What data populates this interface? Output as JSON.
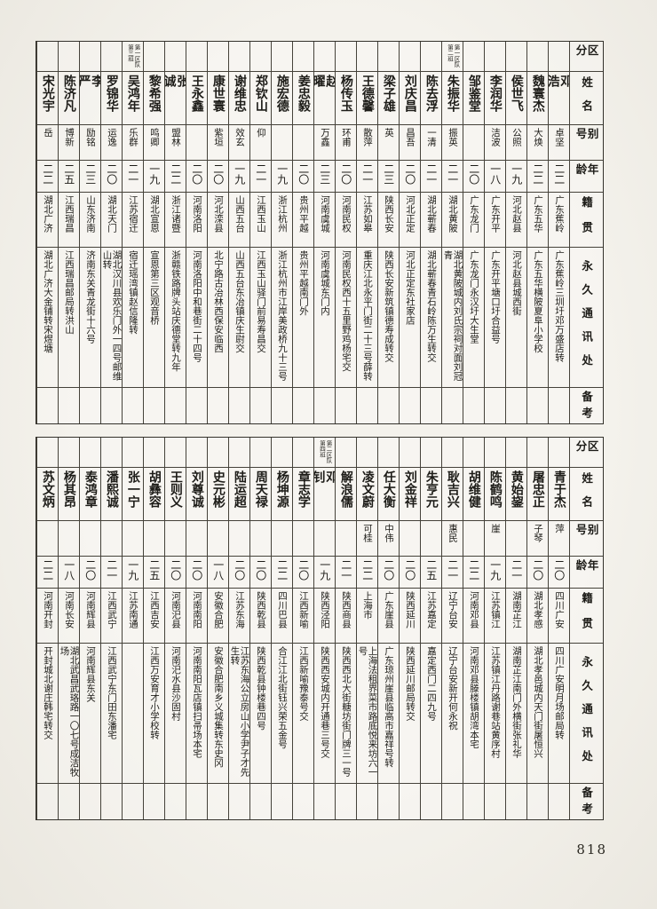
{
  "page": {
    "number": "818"
  },
  "headers": {
    "qufen": "区分",
    "name": "姓名",
    "alias": "别号",
    "age": "年龄",
    "native": "籍贯",
    "address": "永久通讯处",
    "note": "备考"
  },
  "tables": [
    {
      "people": [
        {
          "name": "邓浩",
          "alias": "卓坚",
          "age": "二二",
          "native": "广东蕉岭",
          "address": "广东蕉岭三圳圩邓万盛店转"
        },
        {
          "name": "魏寰杰",
          "alias": "大焕",
          "age": "二二",
          "native": "广东五华",
          "address": "广东五华横陂夏阜小学校"
        },
        {
          "name": "侯世飞",
          "alias": "公照",
          "age": "一九",
          "native": "河北赵县",
          "address": "河北赵县城西街"
        },
        {
          "name": "李润华",
          "alias": "洁波",
          "age": "一八",
          "native": "广东开平",
          "address": "广东开平塘口圩合益号"
        },
        {
          "name": "邹鉴堂",
          "alias": "",
          "age": "二〇",
          "native": "广东龙门",
          "address": "广东龙门永汉圩大生堂"
        },
        {
          "name": "朱振华",
          "alias": "振英",
          "age": "二一",
          "native": "湖北黄陂",
          "address": "湖北黄陂城内刘氏宗祠对面刘冠青",
          "group": "第一区队第二班"
        },
        {
          "name": "陈去浮",
          "alias": "一清",
          "age": "二一",
          "native": "湖北蕲春",
          "address": "湖北蕲春青石岭陈万生转交"
        },
        {
          "name": "刘庆昌",
          "alias": "昌吾",
          "age": "二〇",
          "native": "河北正定",
          "address": "河北正定东社家店"
        },
        {
          "name": "梁子雄",
          "alias": "英",
          "age": "二三",
          "native": "陕西长安",
          "address": "陕西长安新筑镇德寿成转交"
        },
        {
          "name": "王德馨",
          "alias": "散萍",
          "age": "二一",
          "native": "江苏如皋",
          "address": "重庆江北永平门街二十三号薛转"
        },
        {
          "name": "杨传玉",
          "alias": "环甫",
          "age": "二〇",
          "native": "河南民权",
          "address": "河南民权西十五里野鸡杨宅交"
        },
        {
          "name": "赵曜",
          "alias": "万鑫",
          "age": "二三",
          "native": "河南虞城",
          "address": "河南虞城东门内"
        },
        {
          "name": "姜忠毅",
          "alias": "",
          "age": "二〇",
          "native": "贵州平越",
          "address": "贵州平越南门外"
        },
        {
          "name": "施宏德",
          "alias": "",
          "age": "一九",
          "native": "浙江杭州",
          "address": "浙江杭州市江岸美政桥九十三号"
        },
        {
          "name": "郑钦山",
          "alias": "仰",
          "age": "二一",
          "native": "江西玉山",
          "address": "江西玉山驿门前易寿昌交"
        },
        {
          "name": "谢维忠",
          "alias": "效玄",
          "age": "一九",
          "native": "山西五台",
          "address": "山西五台东冶镇庆生尉交"
        },
        {
          "name": "康世寰",
          "alias": "紫垣",
          "age": "二〇",
          "native": "河北滦县",
          "address": "北宁路古冶林西保安临西"
        },
        {
          "name": "王永鑫",
          "alias": "",
          "age": "二〇",
          "native": "河南洛阳",
          "address": "河南洛阳中和巷街二十四号"
        },
        {
          "name": "张诚",
          "alias": "盟林",
          "age": "二二",
          "native": "浙江诸暨",
          "address": "浙赣铁路牌头站庆德堂转九年"
        },
        {
          "name": "黎希强",
          "alias": "鸣卿",
          "age": "一九",
          "native": "湖北宣恩",
          "address": "宣恩第三区观音桥"
        },
        {
          "name": "吴鸿年",
          "alias": "乐群",
          "age": "二一",
          "native": "江苏宿迁",
          "address": "宿迁瑶湾镇赵信隆转",
          "group": "第一区队第三班"
        },
        {
          "name": "罗锦华",
          "alias": "运逸",
          "age": "二〇",
          "native": "湖北天门",
          "address": "湖北汉川县欢乐门外一四号邮维山转"
        },
        {
          "name": "李严",
          "alias": "励铭",
          "age": "二三",
          "native": "山东济南",
          "address": "济南东关青龙街十六号"
        },
        {
          "name": "陈济凡",
          "alias": "博新",
          "age": "二五",
          "native": "江西瑞昌",
          "address": "江西瑞昌邮局转洪山"
        },
        {
          "name": "宋光宇",
          "alias": "岳",
          "age": "二二",
          "native": "湖北广济",
          "address": "湖北广济大金铺转宋煜塘"
        }
      ]
    },
    {
      "people": [
        {
          "name": "青于杰",
          "alias": "萍",
          "age": "二〇",
          "native": "四川广安",
          "address": "四川广安明月场邮局转"
        },
        {
          "name": "屠忠正",
          "alias": "子琴",
          "age": "二〇",
          "native": "湖北孝感",
          "address": "湖北孝邑城内天门街屠恒兴"
        },
        {
          "name": "黄始鋆",
          "alias": "",
          "age": "二一",
          "native": "湖南芷江",
          "address": "湖南芷江南门外横街张礼华"
        },
        {
          "name": "陈鹤鸣",
          "alias": "崖",
          "age": "一九",
          "native": "江苏镇江",
          "address": "江苏镇江丹路谢巷站黄序村"
        },
        {
          "name": "胡维健",
          "alias": "",
          "age": "二二",
          "native": "河南邓县",
          "address": "河南邓县滕楼镇胡湾本宅"
        },
        {
          "name": "耿吉兴",
          "alias": "惠民",
          "age": "二一",
          "native": "辽宁台安",
          "address": "辽宁台安新开何永祝"
        },
        {
          "name": "朱亨元",
          "alias": "",
          "age": "二五",
          "native": "江苏嘉定",
          "address": "嘉定西门二四九号"
        },
        {
          "name": "刘金祥",
          "alias": "",
          "age": "二〇",
          "native": "陕西延川",
          "address": "陕西延川邮局转交"
        },
        {
          "name": "任大衡",
          "alias": "中伟",
          "age": "二〇",
          "native": "广东崖县",
          "address": "广东琼州崖县临高市嘉祥号转"
        },
        {
          "name": "凌文蔚",
          "alias": "可桂",
          "age": "二二",
          "native": "上海市",
          "address": "上海法租界菜市路底悦来坊六一号"
        },
        {
          "name": "解浪儒",
          "alias": "",
          "age": "二一",
          "native": "陕西商县",
          "address": "陕西西北大街糖坊街门牌三一号"
        },
        {
          "name": "邓钊",
          "alias": "",
          "age": "一九",
          "native": "陕西泾阳",
          "address": "陕西西安城内开通巷三号交",
          "group": "第二区队第四班"
        },
        {
          "name": "章志学",
          "alias": "",
          "age": "二〇",
          "native": "江西新喻",
          "address": "江西新喻豫泰号交"
        },
        {
          "name": "杨坤源",
          "alias": "",
          "age": "二二",
          "native": "四川巴县",
          "address": "合江江北街钰兴荣五金号"
        },
        {
          "name": "周天禄",
          "alias": "",
          "age": "二〇",
          "native": "陕西乾县",
          "address": "陕西乾县钟楼巷四号"
        },
        {
          "name": "陆运超",
          "alias": "",
          "age": "二〇",
          "native": "江苏东海",
          "address": "江苏东海公立房山小学尹子才先生转"
        },
        {
          "name": "史元彬",
          "alias": "",
          "age": "一八",
          "native": "安徽合肥",
          "address": "安徽合肥南乡义城集转东史冈"
        },
        {
          "name": "刘尊诚",
          "alias": "",
          "age": "二〇",
          "native": "河南南阳",
          "address": "河南南阳瓦店镇扫帚场本宅"
        },
        {
          "name": "王则义",
          "alias": "",
          "age": "二〇",
          "native": "河南汜县",
          "address": "河南汜水县沙固村"
        },
        {
          "name": "胡彝容",
          "alias": "",
          "age": "二五",
          "native": "江西吉安",
          "address": "江西万安育才小学校转"
        },
        {
          "name": "张一宁",
          "alias": "",
          "age": "一九",
          "native": "江苏南通",
          "address": ""
        },
        {
          "name": "潘熙诚",
          "alias": "",
          "age": "二一",
          "native": "江西武宁",
          "address": "江西武宁东门田东潘宅"
        },
        {
          "name": "泰鸿章",
          "alias": "",
          "age": "二〇",
          "native": "河南辉县",
          "address": "河南辉县东关"
        },
        {
          "name": "杨其昂",
          "alias": "",
          "age": "一八",
          "native": "河南长安",
          "address": "湖北武昌武珞路一〇七号成洁牧场"
        },
        {
          "name": "苏文炳",
          "alias": "",
          "age": "二二",
          "native": "河南开封",
          "address": "开封城北谢庄韩宅转交"
        }
      ]
    }
  ]
}
